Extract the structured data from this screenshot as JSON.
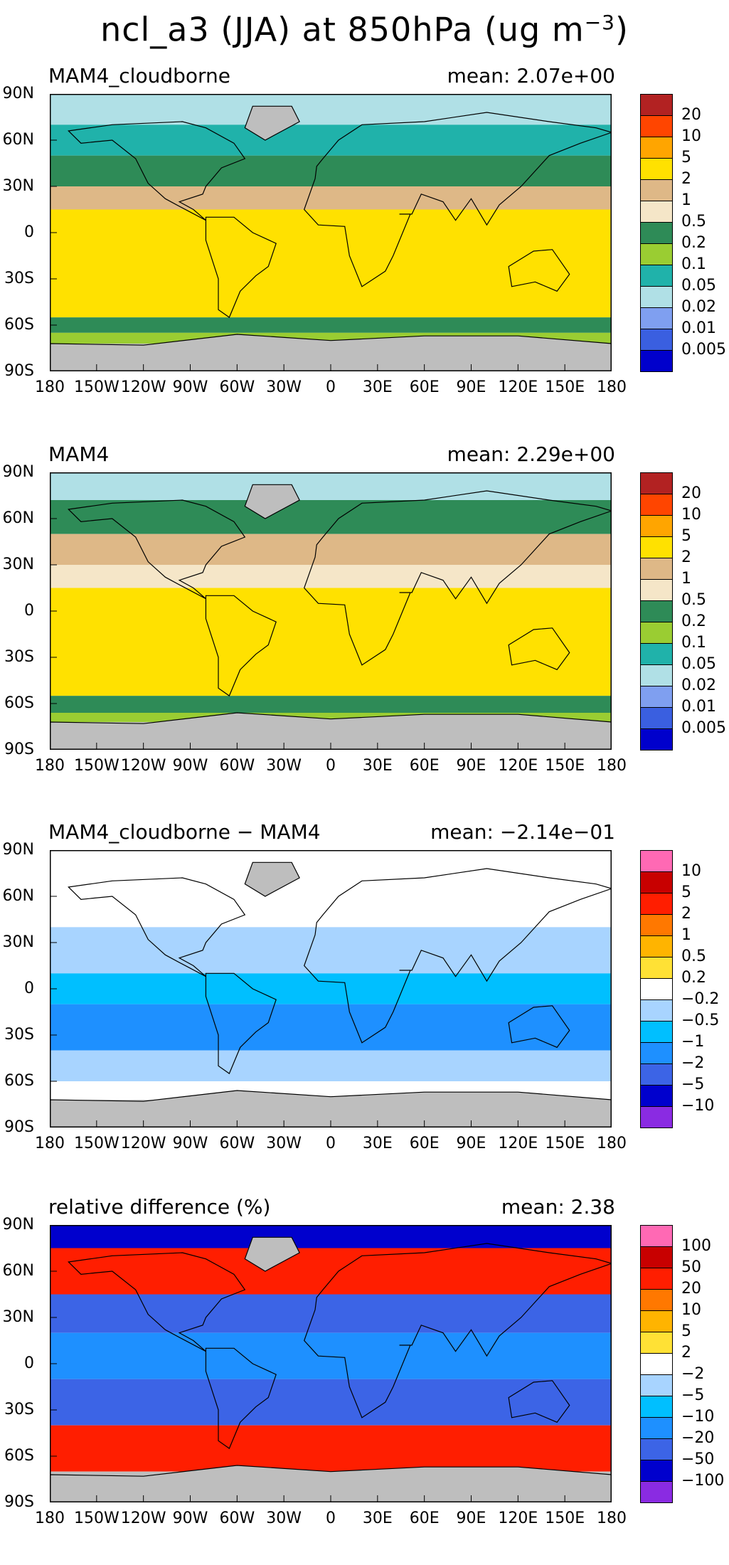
{
  "title": {
    "main": "ncl_a3 (JJA) at 850hPa (ug m",
    "unit_sup": "−3",
    "close": ")"
  },
  "lat_labels": [
    "90N",
    "60N",
    "30N",
    "0",
    "30S",
    "60S",
    "90S"
  ],
  "lon_labels": [
    "180",
    "150W",
    "120W",
    "90W",
    "60W",
    "30W",
    "0",
    "30E",
    "60E",
    "90E",
    "120E",
    "150E",
    "180"
  ],
  "colors": {
    "abs": [
      "#0000cc",
      "#3a5fe0",
      "#7f9ff0",
      "#b0e0e6",
      "#20b2aa",
      "#9acd32",
      "#2e8b57",
      "#f5e6c8",
      "#deb887",
      "#ffe100",
      "#ffa500",
      "#ff4500",
      "#b22222"
    ],
    "diff": [
      "#8a2be2",
      "#0000cd",
      "#3c64e6",
      "#1e90ff",
      "#00bfff",
      "#a8d4ff",
      "#ffffff",
      "#ffe135",
      "#ffb400",
      "#ff7800",
      "#ff1e00",
      "#c80000",
      "#ff69b4"
    ],
    "land_missing": "#bebebe"
  },
  "chart_data": [
    {
      "type": "heatmap",
      "name": "MAM4_cloudborne",
      "title": "MAM4_cloudborne",
      "mean_label": "mean:  2.07e+00",
      "ylim": [
        -90,
        90
      ],
      "xlim": [
        -180,
        180
      ],
      "levels": [
        "20",
        "10",
        "5",
        "2",
        "1",
        "0.5",
        "0.2",
        "0.1",
        "0.05",
        "0.02",
        "0.01",
        "0.005"
      ],
      "palette": "abs",
      "bands": [
        [
          90,
          70,
          "#b0e0e6"
        ],
        [
          70,
          50,
          "#20b2aa"
        ],
        [
          50,
          30,
          "#2e8b57"
        ],
        [
          30,
          15,
          "#deb887"
        ],
        [
          15,
          -55,
          "#ffe100"
        ],
        [
          -55,
          -65,
          "#2e8b57"
        ],
        [
          -65,
          -72,
          "#9acd32"
        ],
        [
          -72,
          -90,
          "#bebebe"
        ]
      ]
    },
    {
      "type": "heatmap",
      "name": "MAM4",
      "title": "MAM4",
      "mean_label": "mean:  2.29e+00",
      "ylim": [
        -90,
        90
      ],
      "xlim": [
        -180,
        180
      ],
      "levels": [
        "20",
        "10",
        "5",
        "2",
        "1",
        "0.5",
        "0.2",
        "0.1",
        "0.05",
        "0.02",
        "0.01",
        "0.005"
      ],
      "palette": "abs",
      "bands": [
        [
          90,
          72,
          "#b0e0e6"
        ],
        [
          72,
          50,
          "#2e8b57"
        ],
        [
          50,
          30,
          "#deb887"
        ],
        [
          30,
          15,
          "#f5e6c8"
        ],
        [
          15,
          -55,
          "#ffe100"
        ],
        [
          -55,
          -66,
          "#2e8b57"
        ],
        [
          -66,
          -72,
          "#9acd32"
        ],
        [
          -72,
          -90,
          "#bebebe"
        ]
      ]
    },
    {
      "type": "heatmap",
      "name": "MAM4_cloudborne − MAM4",
      "title": "MAM4_cloudborne − MAM4",
      "mean_label": "mean:  −2.14e−01",
      "ylim": [
        -90,
        90
      ],
      "xlim": [
        -180,
        180
      ],
      "levels": [
        "10",
        "5",
        "2",
        "1",
        "0.5",
        "0.2",
        "−0.2",
        "−0.5",
        "−1",
        "−2",
        "−5",
        "−10"
      ],
      "palette": "diff",
      "bands": [
        [
          90,
          40,
          "#ffffff"
        ],
        [
          40,
          10,
          "#a8d4ff"
        ],
        [
          10,
          -10,
          "#00bfff"
        ],
        [
          -10,
          -40,
          "#1e90ff"
        ],
        [
          -40,
          -60,
          "#a8d4ff"
        ],
        [
          -60,
          -72,
          "#ffffff"
        ],
        [
          -72,
          -90,
          "#bebebe"
        ]
      ]
    },
    {
      "type": "heatmap",
      "name": "relative difference (%)",
      "title": "relative difference (%)",
      "mean_label": "mean:   2.38",
      "ylim": [
        -90,
        90
      ],
      "xlim": [
        -180,
        180
      ],
      "levels": [
        "100",
        "50",
        "20",
        "10",
        "5",
        "2",
        "−2",
        "−5",
        "−10",
        "−20",
        "−50",
        "−100"
      ],
      "palette": "diff",
      "bands": [
        [
          90,
          75,
          "#0000cd"
        ],
        [
          75,
          45,
          "#ff1e00"
        ],
        [
          45,
          20,
          "#3c64e6"
        ],
        [
          20,
          -10,
          "#1e90ff"
        ],
        [
          -10,
          -40,
          "#3c64e6"
        ],
        [
          -40,
          -70,
          "#ff1e00"
        ],
        [
          -70,
          -90,
          "#bebebe"
        ]
      ]
    }
  ]
}
